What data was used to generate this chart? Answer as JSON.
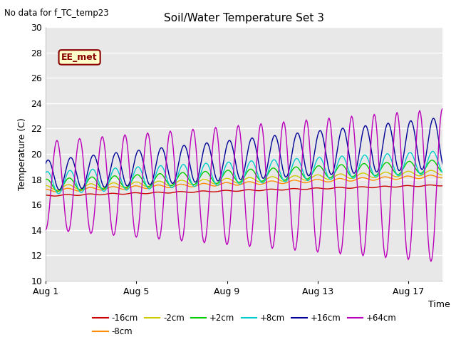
{
  "title": "Soil/Water Temperature Set 3",
  "top_left_text": "No data for f_TC_temp23",
  "xlabel": "Time",
  "ylabel": "Temperature (C)",
  "ylim": [
    10,
    30
  ],
  "yticks": [
    10,
    12,
    14,
    16,
    18,
    20,
    22,
    24,
    26,
    28,
    30
  ],
  "xlim_days": [
    0,
    17.5
  ],
  "x_tick_labels": [
    "Aug 1",
    "Aug 5",
    "Aug 9",
    "Aug 13",
    "Aug 17"
  ],
  "x_tick_positions": [
    0,
    4,
    8,
    12,
    16
  ],
  "fig_bg_color": "#ffffff",
  "plot_bg_color": "#e8e8e8",
  "grid_color": "#ffffff",
  "ee_met_label": "EE_met",
  "legend_colors": {
    "-16cm": "#cc0000",
    "-8cm": "#ff8c00",
    "-2cm": "#cccc00",
    "+2cm": "#00cc00",
    "+8cm": "#00cccc",
    "+16cm": "#000099",
    "+64cm": "#bb00bb"
  }
}
